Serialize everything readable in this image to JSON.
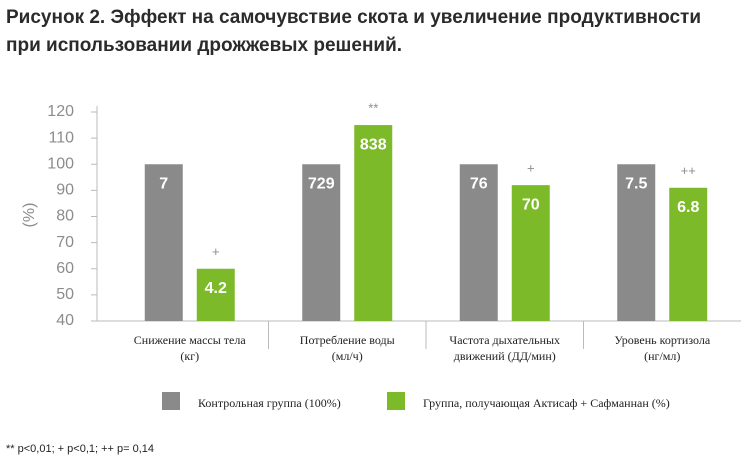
{
  "chart_data": {
    "type": "bar",
    "title": [
      "Рисунок 2. Эффект на самочувствие скота и увеличение продуктивности",
      "при использовании дрожжевых решений."
    ],
    "y_label": "(%)",
    "categories": [
      [
        "Снижение массы тела",
        "(кг)"
      ],
      [
        "Потребление воды",
        "(мл/ч)"
      ],
      [
        "Частота дыхательных",
        "движений (ДД/мин)"
      ],
      [
        "Уровень кортизола",
        "(нг/мл)"
      ]
    ],
    "series": [
      {
        "name": "Контрольная группа (100%)",
        "color": "#8a8a8a",
        "values": [
          100,
          100,
          100,
          100
        ],
        "value_labels": [
          "7",
          "729",
          "76",
          "7.5"
        ],
        "markers": [
          null,
          null,
          null,
          null
        ]
      },
      {
        "name": "Группа, получающая Актисаф + Сафманнан (%)",
        "color": "#7dba2a",
        "values": [
          60,
          115,
          92,
          91
        ],
        "value_labels": [
          "4.2",
          "838",
          "70",
          "6.8"
        ],
        "markers": [
          "+",
          "**",
          "+",
          "++"
        ]
      }
    ],
    "ylim": [
      40,
      120
    ],
    "yticks": [
      40,
      50,
      60,
      70,
      80,
      90,
      100,
      110,
      120
    ],
    "footnote": "** p<0,01; + p<0,1; ++ p= 0,14"
  }
}
